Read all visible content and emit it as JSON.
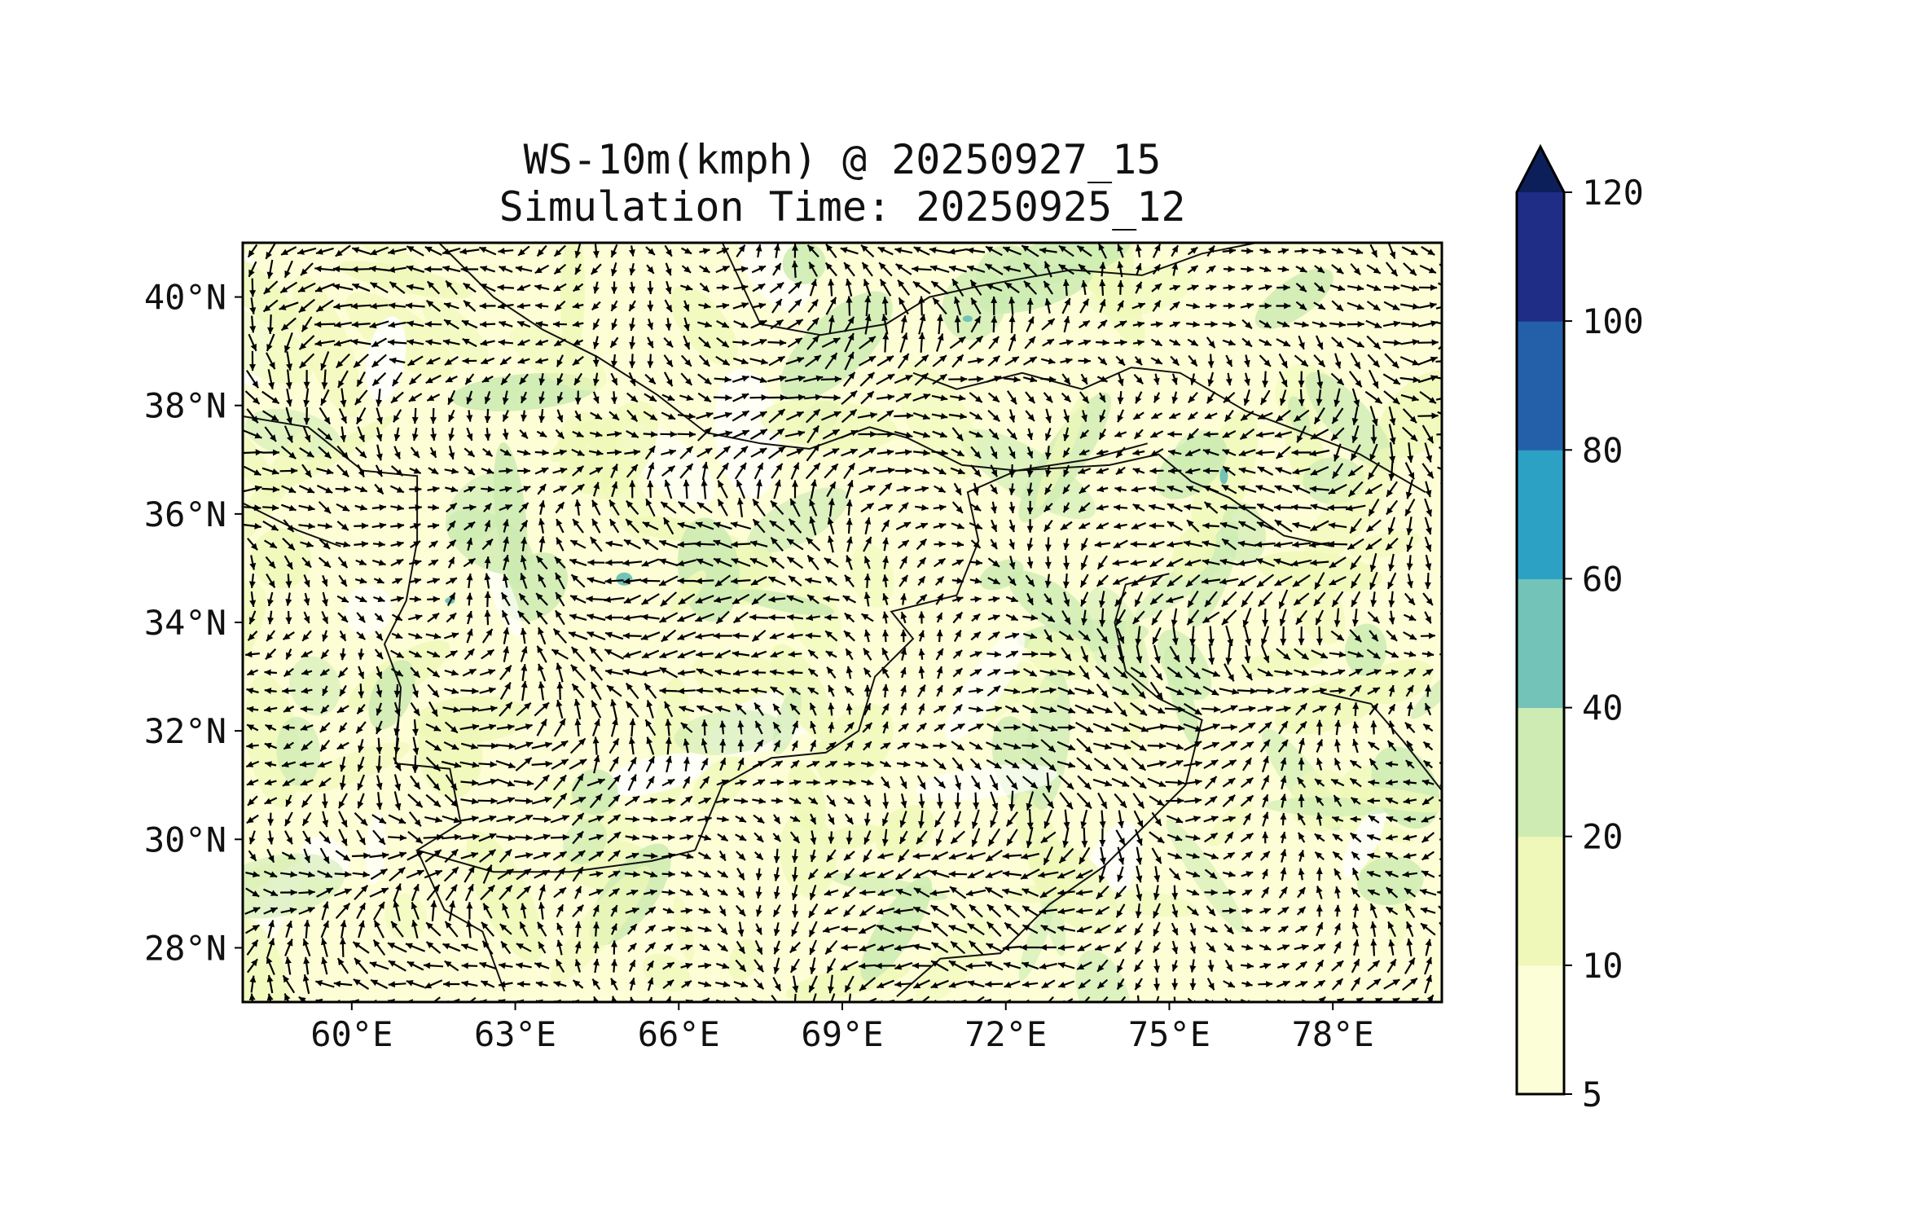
{
  "title": "WS-10m(kmph) @ 20250927_15",
  "subtitle": "Simulation Time: 20250925_12",
  "map": {
    "lon_range": [
      58,
      80
    ],
    "lat_range": [
      27,
      41
    ],
    "lon_ticks": [
      "60°E",
      "63°E",
      "66°E",
      "69°E",
      "72°E",
      "75°E",
      "78°E"
    ],
    "lon_tick_values": [
      60,
      63,
      66,
      69,
      72,
      75,
      78
    ],
    "lat_ticks": [
      "40°N",
      "38°N",
      "36°N",
      "34°N",
      "32°N",
      "30°N",
      "28°N"
    ],
    "lat_tick_values": [
      40,
      38,
      36,
      34,
      32,
      30,
      28
    ],
    "field": "10 m wind speed with wind-direction arrows",
    "background_color": "#fdfed6"
  },
  "colorbar": {
    "levels": [
      "5",
      "10",
      "20",
      "40",
      "60",
      "80",
      "100",
      "120"
    ],
    "colors": [
      "#fcfed8",
      "#eff8b8",
      "#cdebb2",
      "#73c3b8",
      "#2da1c4",
      "#2460a9",
      "#1f2d87",
      "#0c1f5a"
    ],
    "extend": "max"
  }
}
